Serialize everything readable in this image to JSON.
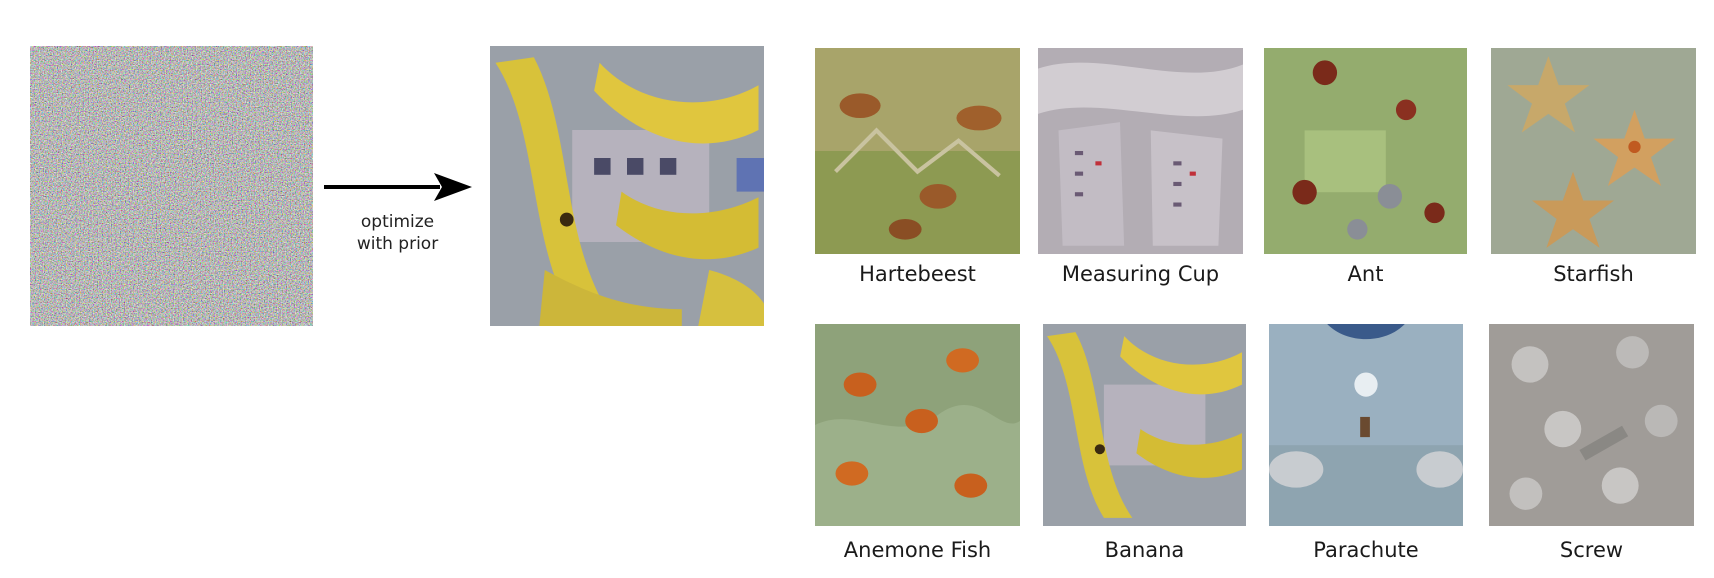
{
  "arrow": {
    "line1": "optimize",
    "line2": "with prior"
  },
  "grid": {
    "items": [
      {
        "label": "Hartebeest"
      },
      {
        "label": "Measuring Cup"
      },
      {
        "label": "Ant"
      },
      {
        "label": "Starfish"
      },
      {
        "label": "Anemone Fish"
      },
      {
        "label": "Banana"
      },
      {
        "label": "Parachute"
      },
      {
        "label": "Screw"
      }
    ]
  }
}
